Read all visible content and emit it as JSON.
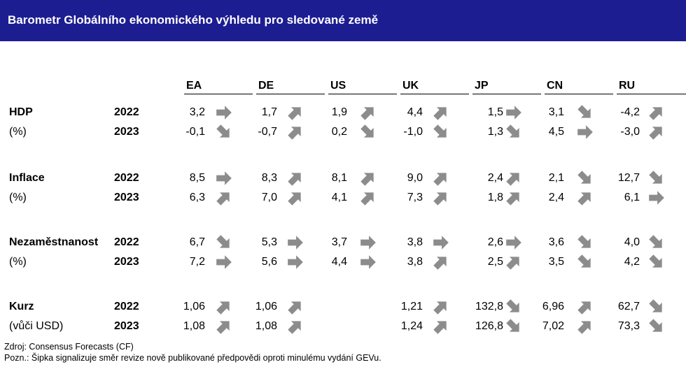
{
  "title": "Barometr Globálního ekonomického výhledu pro sledované země",
  "colors": {
    "header_bg": "#1d1d92",
    "arrow": "#8c8c8c"
  },
  "countries": [
    "EA",
    "DE",
    "US",
    "UK",
    "JP",
    "CN",
    "RU"
  ],
  "years": [
    "2022",
    "2023"
  ],
  "indicators": [
    {
      "label": "HDP",
      "unit": "(%)",
      "rows": [
        {
          "values": [
            "3,2",
            "1,7",
            "1,9",
            "4,4",
            "1,5",
            "3,1",
            "-4,2"
          ],
          "arrows": [
            "right",
            "up",
            "up",
            "up",
            "right",
            "down",
            "up"
          ]
        },
        {
          "values": [
            "-0,1",
            "-0,7",
            "0,2",
            "-1,0",
            "1,3",
            "4,5",
            "-3,0"
          ],
          "arrows": [
            "down",
            "up",
            "down",
            "down",
            "down",
            "right",
            "up"
          ]
        }
      ]
    },
    {
      "label": "Inflace",
      "unit": "(%)",
      "rows": [
        {
          "values": [
            "8,5",
            "8,3",
            "8,1",
            "9,0",
            "2,4",
            "2,1",
            "12,7"
          ],
          "arrows": [
            "right",
            "up",
            "up",
            "up",
            "up",
            "down",
            "down"
          ]
        },
        {
          "values": [
            "6,3",
            "7,0",
            "4,1",
            "7,3",
            "1,8",
            "2,4",
            "6,1"
          ],
          "arrows": [
            "up",
            "up",
            "up",
            "up",
            "up",
            "up",
            "right"
          ]
        }
      ]
    },
    {
      "label": "Nezaměstnanost",
      "unit": "(%)",
      "rows": [
        {
          "values": [
            "6,7",
            "5,3",
            "3,7",
            "3,8",
            "2,6",
            "3,6",
            "4,0"
          ],
          "arrows": [
            "down",
            "right",
            "right",
            "right",
            "right",
            "down",
            "down"
          ]
        },
        {
          "values": [
            "7,2",
            "5,6",
            "4,4",
            "3,8",
            "2,5",
            "3,5",
            "4,2"
          ],
          "arrows": [
            "right",
            "right",
            "right",
            "up",
            "up",
            "down",
            "down"
          ]
        }
      ]
    },
    {
      "label": "Kurz",
      "unit": "(vůči USD)",
      "rows": [
        {
          "values": [
            "1,06",
            "1,06",
            "",
            "1,21",
            "132,8",
            "6,96",
            "62,7"
          ],
          "arrows": [
            "up",
            "up",
            "",
            "up",
            "down",
            "up",
            "down"
          ]
        },
        {
          "values": [
            "1,08",
            "1,08",
            "",
            "1,24",
            "126,8",
            "7,02",
            "73,3"
          ],
          "arrows": [
            "up",
            "up",
            "",
            "up",
            "down",
            "up",
            "down"
          ]
        }
      ]
    }
  ],
  "footer": {
    "source": "Zdroj: Consensus Forecasts (CF)",
    "note": "Pozn.: Šipka signalizuje směr revize nově publikované předpovědi oproti minulému vydání GEVu."
  }
}
